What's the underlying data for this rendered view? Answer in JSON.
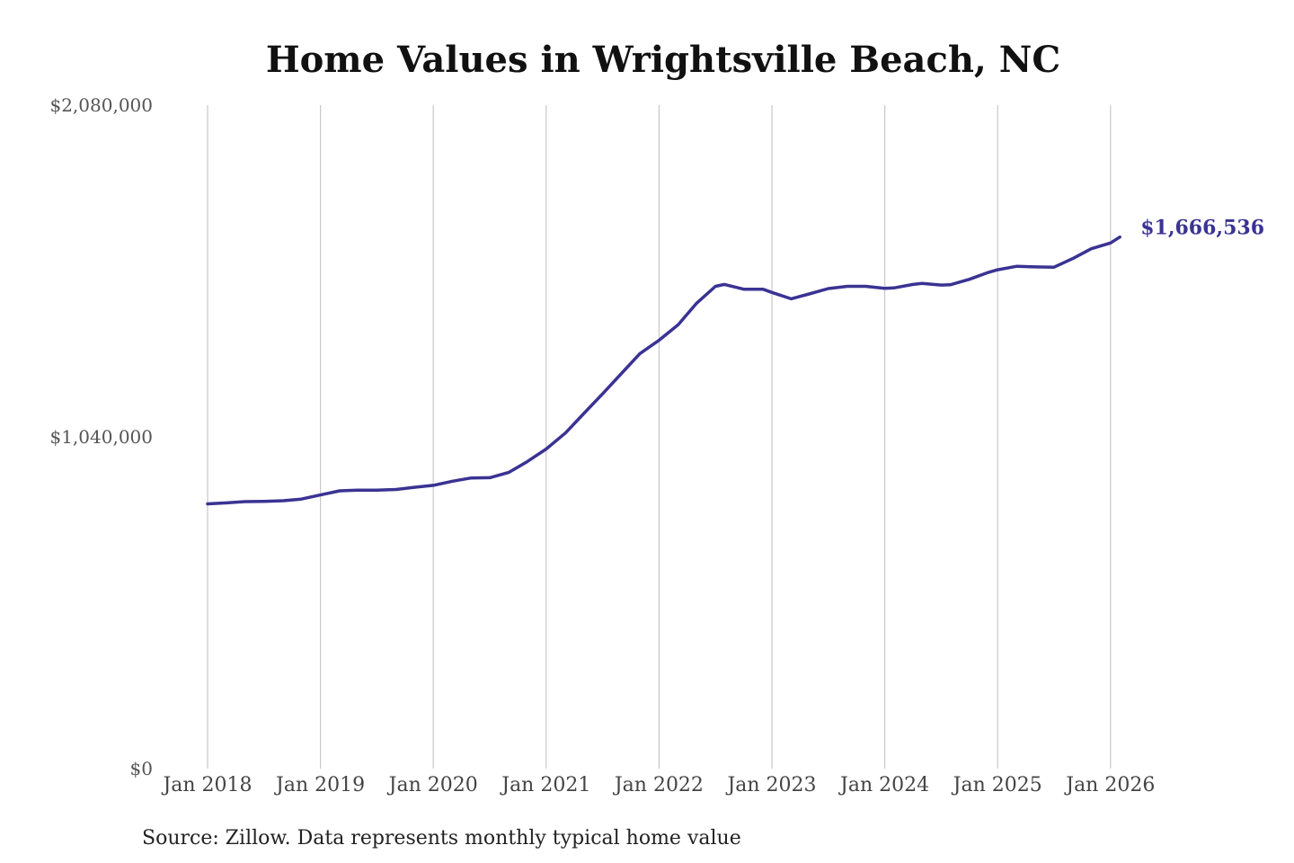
{
  "colors": {
    "series": "#3a3393",
    "grid": "#c8c8c8",
    "text": "#111111"
  },
  "chart_data": {
    "type": "line",
    "title": "Home Values in Wrightsville Beach, NC",
    "xlabel": "",
    "ylabel": "",
    "ylim": [
      0,
      2080000
    ],
    "y_ticks": [
      {
        "value": 0,
        "label": "$0"
      },
      {
        "value": 1040000,
        "label": "$1,040,000"
      },
      {
        "value": 2080000,
        "label": "$2,080,000"
      }
    ],
    "x_ticks": [
      {
        "value": 2018,
        "label": "Jan 2018"
      },
      {
        "value": 2019,
        "label": "Jan 2019"
      },
      {
        "value": 2020,
        "label": "Jan 2020"
      },
      {
        "value": 2021,
        "label": "Jan 2021"
      },
      {
        "value": 2022,
        "label": "Jan 2022"
      },
      {
        "value": 2023,
        "label": "Jan 2023"
      },
      {
        "value": 2024,
        "label": "Jan 2024"
      },
      {
        "value": 2025,
        "label": "Jan 2025"
      },
      {
        "value": 2026,
        "label": "Jan 2026"
      }
    ],
    "xlim": [
      2018,
      2026.083
    ],
    "grid": {
      "vertical": true,
      "horizontal": false
    },
    "series": [
      {
        "color": "#3a3393",
        "end_label": "$1,666,536",
        "points": [
          [
            2018.0,
            830000
          ],
          [
            2018.17,
            833000
          ],
          [
            2018.33,
            837000
          ],
          [
            2018.5,
            838000
          ],
          [
            2018.67,
            840000
          ],
          [
            2018.83,
            845000
          ],
          [
            2019.0,
            858000
          ],
          [
            2019.17,
            871000
          ],
          [
            2019.33,
            873000
          ],
          [
            2019.5,
            873000
          ],
          [
            2019.67,
            875000
          ],
          [
            2019.83,
            882000
          ],
          [
            2020.0,
            888000
          ],
          [
            2020.17,
            901000
          ],
          [
            2020.33,
            911000
          ],
          [
            2020.5,
            912000
          ],
          [
            2020.67,
            929000
          ],
          [
            2020.83,
            962000
          ],
          [
            2021.0,
            1002000
          ],
          [
            2021.17,
            1052000
          ],
          [
            2021.33,
            1112000
          ],
          [
            2021.5,
            1175000
          ],
          [
            2021.67,
            1240000
          ],
          [
            2021.83,
            1301000
          ],
          [
            2022.0,
            1343000
          ],
          [
            2022.17,
            1392000
          ],
          [
            2022.33,
            1458000
          ],
          [
            2022.5,
            1512000
          ],
          [
            2022.58,
            1518000
          ],
          [
            2022.75,
            1503000
          ],
          [
            2022.92,
            1503000
          ],
          [
            2023.0,
            1493000
          ],
          [
            2023.17,
            1473000
          ],
          [
            2023.33,
            1488000
          ],
          [
            2023.5,
            1505000
          ],
          [
            2023.67,
            1512000
          ],
          [
            2023.83,
            1512000
          ],
          [
            2024.0,
            1506000
          ],
          [
            2024.08,
            1507000
          ],
          [
            2024.25,
            1518000
          ],
          [
            2024.33,
            1521000
          ],
          [
            2024.5,
            1516000
          ],
          [
            2024.58,
            1517000
          ],
          [
            2024.75,
            1534000
          ],
          [
            2024.92,
            1556000
          ],
          [
            2025.0,
            1564000
          ],
          [
            2025.17,
            1575000
          ],
          [
            2025.33,
            1573000
          ],
          [
            2025.5,
            1572000
          ],
          [
            2025.67,
            1600000
          ],
          [
            2025.83,
            1630000
          ],
          [
            2026.0,
            1648000
          ],
          [
            2026.083,
            1666536
          ]
        ]
      }
    ],
    "source": "Source: Zillow. Data represents monthly typical home value"
  }
}
